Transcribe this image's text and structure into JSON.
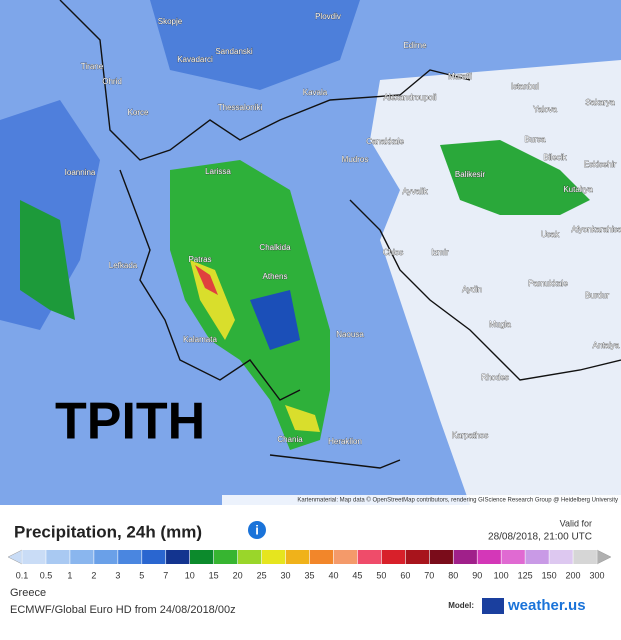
{
  "map": {
    "overlay_text": "TPITH",
    "attribution": "Kartenmaterial: Map data © OpenStreetMap contributors, rendering GIScience Research Group @ Heidelberg University",
    "places": [
      "Skopje",
      "Plovdiv",
      "Tirane",
      "Kavadarci",
      "Sandanski",
      "Edirne",
      "Ohrid",
      "Muratli",
      "Istanbul",
      "Kavala",
      "Alexandroupoli",
      "Yalova",
      "Sakarya",
      "Korce",
      "Thessaloniki",
      "Bursa",
      "Bilecik",
      "Canakkale",
      "Eskisehir",
      "Ioannina",
      "Larissa",
      "Mudros",
      "Balikesir",
      "Kutahya",
      "Ayvalik",
      "Usak",
      "Chalkida",
      "Afyonkarahisar",
      "Lefkada",
      "Patras",
      "Athens",
      "Chios",
      "Izmir",
      "Aydin",
      "Pamukkale",
      "Burdur",
      "Kalamata",
      "Naousa",
      "Mugla",
      "Rhodes",
      "Antalya",
      "Chania",
      "Heraklion",
      "Karpathos"
    ]
  },
  "legend": {
    "title": "Precipitation, 24h (mm)",
    "valid_label": "Valid for",
    "valid_time": "28/08/2018, 21:00 UTC",
    "ticks": [
      0.1,
      0.5,
      1,
      2,
      3,
      5,
      7,
      10,
      15,
      20,
      25,
      30,
      35,
      40,
      45,
      50,
      60,
      70,
      80,
      90,
      100,
      125,
      150,
      200,
      300
    ],
    "colors": [
      "#c9dcf6",
      "#a9c9f2",
      "#8ab6ee",
      "#6aa0e8",
      "#4a86e0",
      "#2a66d0",
      "#13348f",
      "#0c8a2c",
      "#37b531",
      "#9ad62a",
      "#e6e51e",
      "#f0b21a",
      "#f2862a",
      "#f49a6a",
      "#ef4c6a",
      "#d8202a",
      "#a8141c",
      "#7a0c1a",
      "#a0208a",
      "#d437b8",
      "#e06ad2",
      "#c99ae6",
      "#ddc8f0",
      "#d6d6d6",
      "#b0b0b0"
    ]
  },
  "footer": {
    "region": "Greece",
    "model_run": "ECMWF/Global Euro HD from 24/08/2018/00z",
    "model_label": "Model:",
    "brand": "weather.us"
  }
}
